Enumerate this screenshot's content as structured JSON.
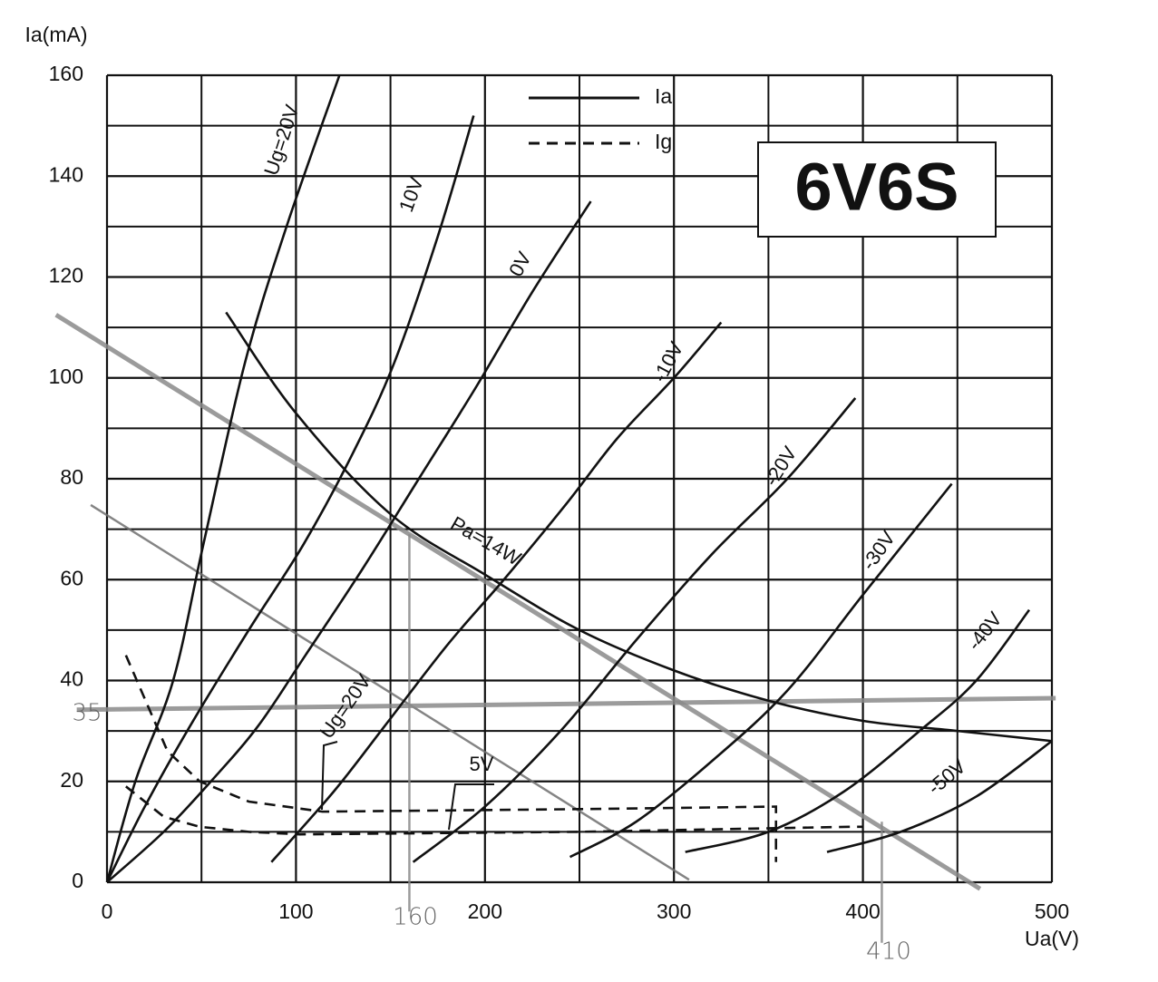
{
  "chart_data": {
    "type": "line",
    "title": "6V6S",
    "y_label": "Ia(mA)",
    "x_label": "Ua(V)",
    "xlim": [
      0,
      500
    ],
    "ylim": [
      0,
      160
    ],
    "xticks": [
      0,
      100,
      200,
      300,
      400,
      500
    ],
    "yticks": [
      0,
      20,
      40,
      60,
      80,
      100,
      120,
      140,
      160
    ],
    "xminor": [
      50,
      150,
      250,
      350,
      450
    ],
    "yminor": [
      10,
      30,
      50,
      70,
      90,
      110,
      130,
      150
    ],
    "grid": true,
    "color": "#111111",
    "legend": [
      {
        "name": "Ia",
        "dash": false
      },
      {
        "name": "Ig",
        "dash": true
      }
    ],
    "series": [
      {
        "label": "Ug=20V",
        "dash": false,
        "x": [
          0,
          15,
          35,
          51,
          73,
          95,
          123
        ],
        "values": [
          0,
          20,
          40,
          67,
          103,
          130,
          160
        ]
      },
      {
        "label": "10V",
        "dash": false,
        "x": [
          0,
          20,
          44,
          75,
          104,
          130,
          152,
          175,
          194
        ],
        "values": [
          0,
          15,
          31,
          50,
          67,
          85,
          103,
          128,
          152
        ]
      },
      {
        "label": "0V",
        "dash": false,
        "x": [
          0,
          30,
          55,
          80,
          105,
          135,
          165,
          195,
          225,
          256
        ],
        "values": [
          0,
          10,
          20,
          31,
          45,
          62,
          80,
          98,
          117,
          135
        ]
      },
      {
        "label": "-10V",
        "dash": false,
        "x": [
          87,
          120,
          147,
          180,
          210,
          243,
          270,
          300,
          325
        ],
        "values": [
          4,
          18,
          31,
          47,
          60,
          75,
          88,
          100,
          111
        ]
      },
      {
        "label": "-20V",
        "dash": false,
        "x": [
          162,
          200,
          240,
          280,
          320,
          360,
          396
        ],
        "values": [
          4,
          15,
          30,
          48,
          65,
          80,
          96
        ]
      },
      {
        "label": "-30V",
        "dash": false,
        "x": [
          245,
          280,
          320,
          360,
          400,
          447
        ],
        "values": [
          5,
          12,
          24,
          38,
          57,
          79
        ]
      },
      {
        "label": "-40V",
        "dash": false,
        "x": [
          306,
          350,
          390,
          430,
          460,
          488
        ],
        "values": [
          6,
          10,
          18,
          30,
          40,
          54
        ]
      },
      {
        "label": "-50V",
        "dash": false,
        "x": [
          381,
          420,
          460,
          500
        ],
        "values": [
          6,
          10,
          17,
          28
        ]
      },
      {
        "label": "Ug=20V",
        "dash": true,
        "x": [
          10,
          32,
          49,
          75,
          114,
          250,
          354,
          354
        ],
        "values": [
          45,
          26,
          20,
          16,
          14,
          14.5,
          15,
          4
        ]
      },
      {
        "label": "5V",
        "dash": true,
        "x": [
          10,
          30,
          49,
          75,
          102,
          250,
          394,
          400
        ],
        "values": [
          19,
          13,
          11,
          10,
          9.5,
          10,
          11,
          11
        ]
      },
      {
        "label": "Pa=14W",
        "dash": false,
        "x": [
          63,
          100,
          150,
          200,
          250,
          300,
          350,
          400,
          450,
          500
        ],
        "values": [
          113,
          93,
          73,
          61,
          50,
          42,
          36,
          32,
          30,
          28
        ]
      }
    ],
    "guides": [
      {
        "color": "#8a8a8a",
        "x": [
          -27,
          462
        ],
        "values": [
          112.5,
          -1.3
        ]
      },
      {
        "color": "#6f6f6f",
        "x": [
          -8.6,
          308
        ],
        "values": [
          74.8,
          0.5
        ]
      },
      {
        "color": "#8a8a8a",
        "x": [
          -16,
          502
        ],
        "values": [
          34.2,
          36.5
        ]
      },
      {
        "color": "#8a8a8a",
        "x": [
          160,
          160
        ],
        "values": [
          69,
          -5.8
        ]
      },
      {
        "color": "#8a8a8a",
        "x": [
          410,
          410
        ],
        "values": [
          12,
          -12
        ]
      }
    ],
    "annotations": [
      "35",
      "160",
      "410"
    ]
  }
}
